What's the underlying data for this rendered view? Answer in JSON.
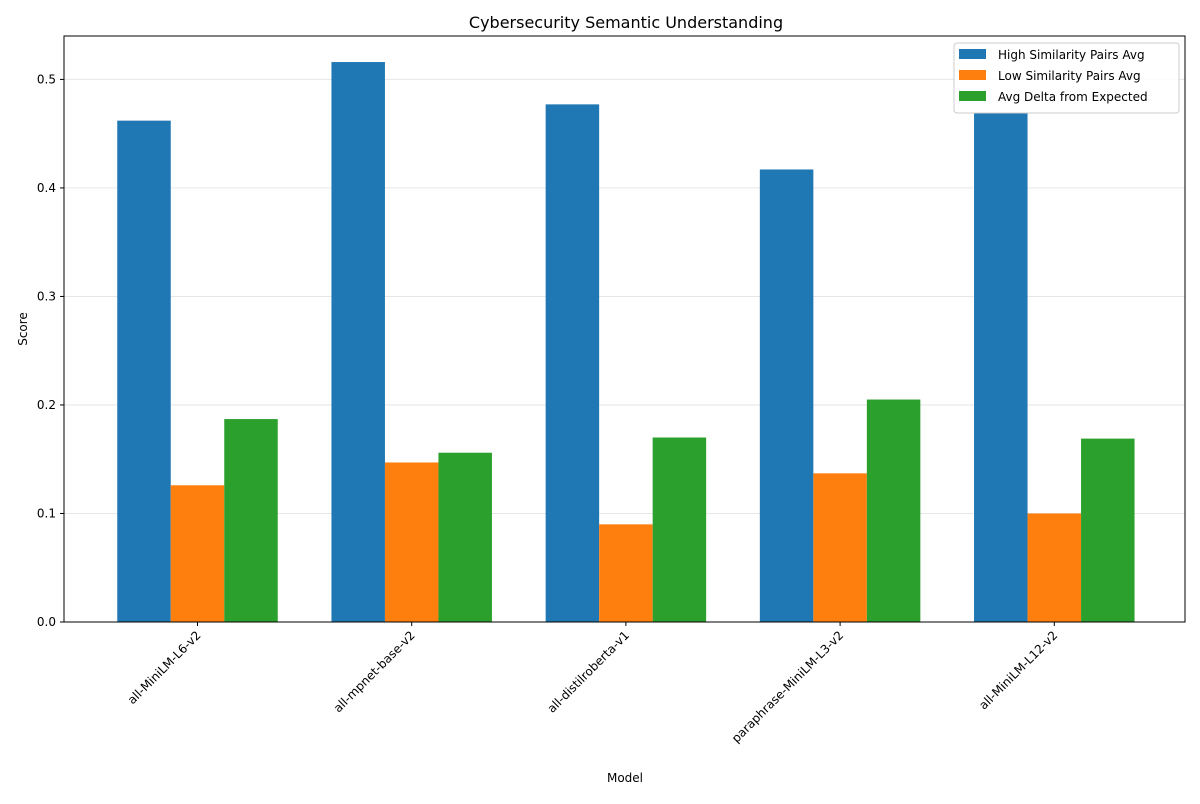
{
  "chart_data": {
    "type": "bar",
    "title": "Cybersecurity Semantic Understanding",
    "xlabel": "Model",
    "ylabel": "Score",
    "categories": [
      "all-MiniLM-L6-v2",
      "all-mpnet-base-v2",
      "all-distilroberta-v1",
      "paraphrase-MiniLM-L3-v2",
      "all-MiniLM-L12-v2"
    ],
    "series": [
      {
        "name": "High Similarity Pairs Avg",
        "color": "#1f77b4",
        "values": [
          0.462,
          0.516,
          0.477,
          0.417,
          0.469
        ]
      },
      {
        "name": "Low Similarity Pairs Avg",
        "color": "#ff7f0e",
        "values": [
          0.126,
          0.147,
          0.09,
          0.137,
          0.1
        ]
      },
      {
        "name": "Avg Delta from Expected",
        "color": "#2ca02c",
        "values": [
          0.187,
          0.156,
          0.17,
          0.205,
          0.169
        ]
      }
    ],
    "ylim": [
      0,
      0.54
    ],
    "yticks": [
      "0.0",
      "0.1",
      "0.2",
      "0.3",
      "0.4",
      "0.5"
    ],
    "grid": true,
    "legend_position": "top-right"
  }
}
